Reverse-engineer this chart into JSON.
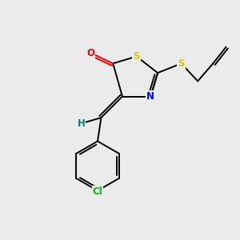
{
  "bg_color": "#ebebeb",
  "atom_colors": {
    "O": "#ff0000",
    "S": "#cccc00",
    "N": "#0000ff",
    "C": "#000000",
    "H": "#008080",
    "Cl": "#00bb00"
  },
  "font_size": 8.5,
  "bond_lw": 1.4
}
